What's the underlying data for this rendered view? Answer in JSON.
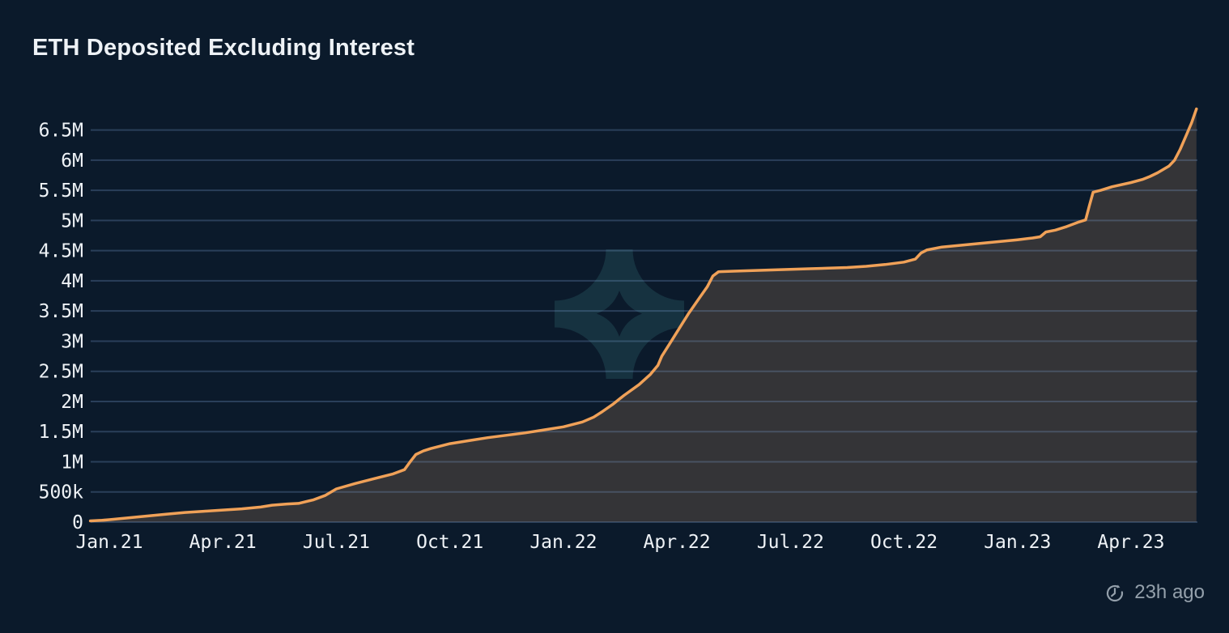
{
  "header": {
    "title": "ETH Deposited Excluding Interest"
  },
  "footer": {
    "updated_label": "23h ago",
    "icon": "clock-history-icon"
  },
  "watermark": {
    "icon": "four-pointed-star-logo"
  },
  "chart_data": {
    "type": "area",
    "title": "ETH Deposited Excluding Interest",
    "xlabel": "",
    "ylabel": "",
    "grid": true,
    "legend": false,
    "x_unit": "months_since_jan_2021",
    "value_unit": "ETH (millions)",
    "x_axis": {
      "tick_labels": [
        "Jan.21",
        "Apr.21",
        "Jul.21",
        "Oct.21",
        "Jan.22",
        "Apr.22",
        "Jul.22",
        "Oct.22",
        "Jan.23",
        "Apr.23"
      ],
      "tick_month_offsets": [
        0,
        3,
        6,
        9,
        12,
        15,
        18,
        21,
        24,
        27
      ],
      "range_month_offsets": [
        -0.5,
        28.73
      ]
    },
    "y_axis": {
      "tick_labels": [
        "0",
        "500k",
        "1M",
        "1.5M",
        "2M",
        "2.5M",
        "3M",
        "3.5M",
        "4M",
        "4.5M",
        "5M",
        "5.5M",
        "6M",
        "6.5M"
      ],
      "tick_values_millions": [
        0,
        0.5,
        1,
        1.5,
        2,
        2.5,
        3,
        3.5,
        4,
        4.5,
        5,
        5.5,
        6,
        6.5
      ],
      "range_millions": [
        0,
        7.0
      ]
    },
    "series": [
      {
        "name": "ETH Deposited Excluding Interest",
        "points": [
          [
            -0.5,
            0.02
          ],
          [
            -0.2,
            0.03
          ],
          [
            0,
            0.04
          ],
          [
            0.5,
            0.07
          ],
          [
            1,
            0.1
          ],
          [
            1.5,
            0.13
          ],
          [
            2,
            0.16
          ],
          [
            2.5,
            0.18
          ],
          [
            3,
            0.2
          ],
          [
            3.5,
            0.22
          ],
          [
            4,
            0.25
          ],
          [
            4.3,
            0.28
          ],
          [
            4.7,
            0.3
          ],
          [
            5,
            0.31
          ],
          [
            5.4,
            0.37
          ],
          [
            5.7,
            0.44
          ],
          [
            6,
            0.55
          ],
          [
            6.5,
            0.64
          ],
          [
            7,
            0.72
          ],
          [
            7.5,
            0.8
          ],
          [
            7.8,
            0.87
          ],
          [
            7.95,
            1.0
          ],
          [
            8.1,
            1.12
          ],
          [
            8.3,
            1.18
          ],
          [
            8.5,
            1.22
          ],
          [
            9,
            1.3
          ],
          [
            9.5,
            1.35
          ],
          [
            10,
            1.4
          ],
          [
            10.5,
            1.44
          ],
          [
            11,
            1.48
          ],
          [
            11.5,
            1.53
          ],
          [
            12,
            1.58
          ],
          [
            12.5,
            1.66
          ],
          [
            12.8,
            1.74
          ],
          [
            13,
            1.82
          ],
          [
            13.3,
            1.95
          ],
          [
            13.6,
            2.1
          ],
          [
            14,
            2.28
          ],
          [
            14.3,
            2.45
          ],
          [
            14.5,
            2.6
          ],
          [
            14.6,
            2.75
          ],
          [
            14.8,
            2.95
          ],
          [
            15,
            3.15
          ],
          [
            15.3,
            3.45
          ],
          [
            15.6,
            3.72
          ],
          [
            15.8,
            3.9
          ],
          [
            15.95,
            4.08
          ],
          [
            16.1,
            4.15
          ],
          [
            16.5,
            4.16
          ],
          [
            17,
            4.17
          ],
          [
            17.5,
            4.18
          ],
          [
            18,
            4.19
          ],
          [
            18.5,
            4.2
          ],
          [
            19,
            4.21
          ],
          [
            19.5,
            4.22
          ],
          [
            20,
            4.24
          ],
          [
            20.5,
            4.27
          ],
          [
            21,
            4.31
          ],
          [
            21.3,
            4.36
          ],
          [
            21.45,
            4.46
          ],
          [
            21.6,
            4.51
          ],
          [
            22,
            4.56
          ],
          [
            22.5,
            4.59
          ],
          [
            23,
            4.62
          ],
          [
            23.5,
            4.65
          ],
          [
            24,
            4.68
          ],
          [
            24.4,
            4.71
          ],
          [
            24.6,
            4.73
          ],
          [
            24.75,
            4.81
          ],
          [
            25,
            4.84
          ],
          [
            25.3,
            4.9
          ],
          [
            25.6,
            4.97
          ],
          [
            25.8,
            5.01
          ],
          [
            25.9,
            5.25
          ],
          [
            26,
            5.47
          ],
          [
            26.2,
            5.5
          ],
          [
            26.5,
            5.56
          ],
          [
            27,
            5.63
          ],
          [
            27.3,
            5.68
          ],
          [
            27.5,
            5.73
          ],
          [
            27.7,
            5.79
          ],
          [
            28,
            5.9
          ],
          [
            28.15,
            6.0
          ],
          [
            28.3,
            6.18
          ],
          [
            28.45,
            6.4
          ],
          [
            28.6,
            6.62
          ],
          [
            28.73,
            6.85
          ]
        ]
      }
    ],
    "colors": {
      "background": "#0b1a2b",
      "line": "#f0a158",
      "area_fill": "#343437",
      "gridline": "#7ea1d3",
      "gridline_opacity": "0.28",
      "watermark": "#163240",
      "text": "#eef2f6",
      "muted_text": "#94a0ab"
    }
  }
}
